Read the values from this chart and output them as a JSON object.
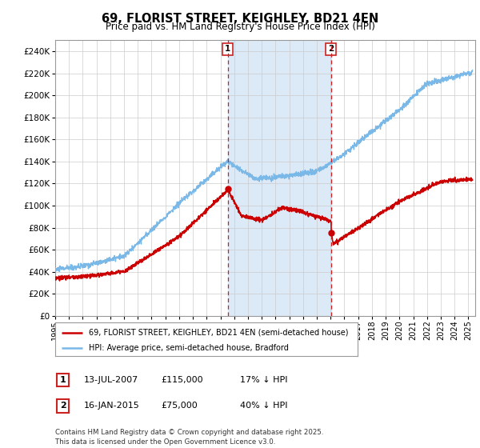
{
  "title": "69, FLORIST STREET, KEIGHLEY, BD21 4EN",
  "subtitle": "Price paid vs. HM Land Registry's House Price Index (HPI)",
  "ylim": [
    0,
    250000
  ],
  "yticks": [
    0,
    20000,
    40000,
    60000,
    80000,
    100000,
    120000,
    140000,
    160000,
    180000,
    200000,
    220000,
    240000
  ],
  "xlim_start": 1995.0,
  "xlim_end": 2025.5,
  "sale1_date": 2007.535,
  "sale1_price": 115000,
  "sale1_label": "1",
  "sale2_date": 2015.04,
  "sale2_price": 75000,
  "sale2_label": "2",
  "highlight_color": "#dce9f7",
  "sale_line_color": "#cc2222",
  "hpi_line_color": "#7ab8e8",
  "price_line_color": "#cc0000",
  "legend_label1": "69, FLORIST STREET, KEIGHLEY, BD21 4EN (semi-detached house)",
  "legend_label2": "HPI: Average price, semi-detached house, Bradford",
  "table_row1": [
    "1",
    "13-JUL-2007",
    "£115,000",
    "17% ↓ HPI"
  ],
  "table_row2": [
    "2",
    "16-JAN-2015",
    "£75,000",
    "40% ↓ HPI"
  ],
  "footer": "Contains HM Land Registry data © Crown copyright and database right 2025.\nThis data is licensed under the Open Government Licence v3.0.",
  "background_color": "#ffffff",
  "grid_color": "#cccccc"
}
